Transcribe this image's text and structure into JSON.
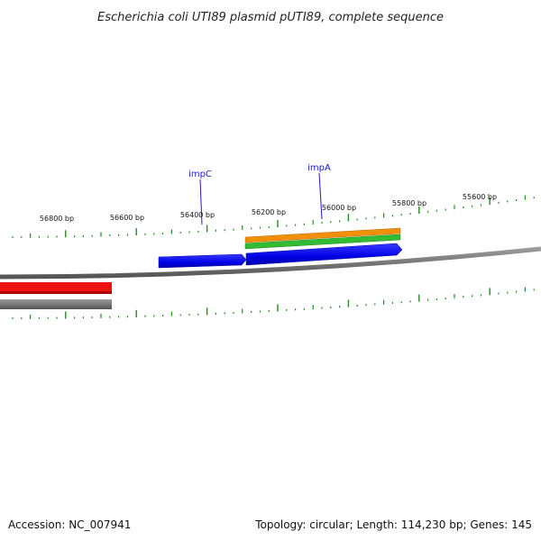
{
  "title": "Escherichia coli UTI89 plasmid pUTI89, complete sequence",
  "ruler": {
    "tick_color": "#228B22",
    "labels": [
      "56800 bp",
      "56600 bp",
      "56400 bp",
      "56200 bp",
      "56000 bp",
      "55800 bp",
      "55600 bp"
    ]
  },
  "genes": [
    {
      "name": "impC",
      "color": "#0000ee",
      "strand": "reverse"
    },
    {
      "name": "impA",
      "color": "#0000ee",
      "strand": "reverse"
    }
  ],
  "tracks": {
    "backbone_color": "#777777",
    "orange_color": "#f0900a",
    "green_color": "#33bb33",
    "red_color": "#ee1111",
    "gray_color": "#707070"
  },
  "footer": {
    "accession": "Accession: NC_007941",
    "summary": "Topology: circular; Length: 114,230 bp; Genes: 145"
  }
}
